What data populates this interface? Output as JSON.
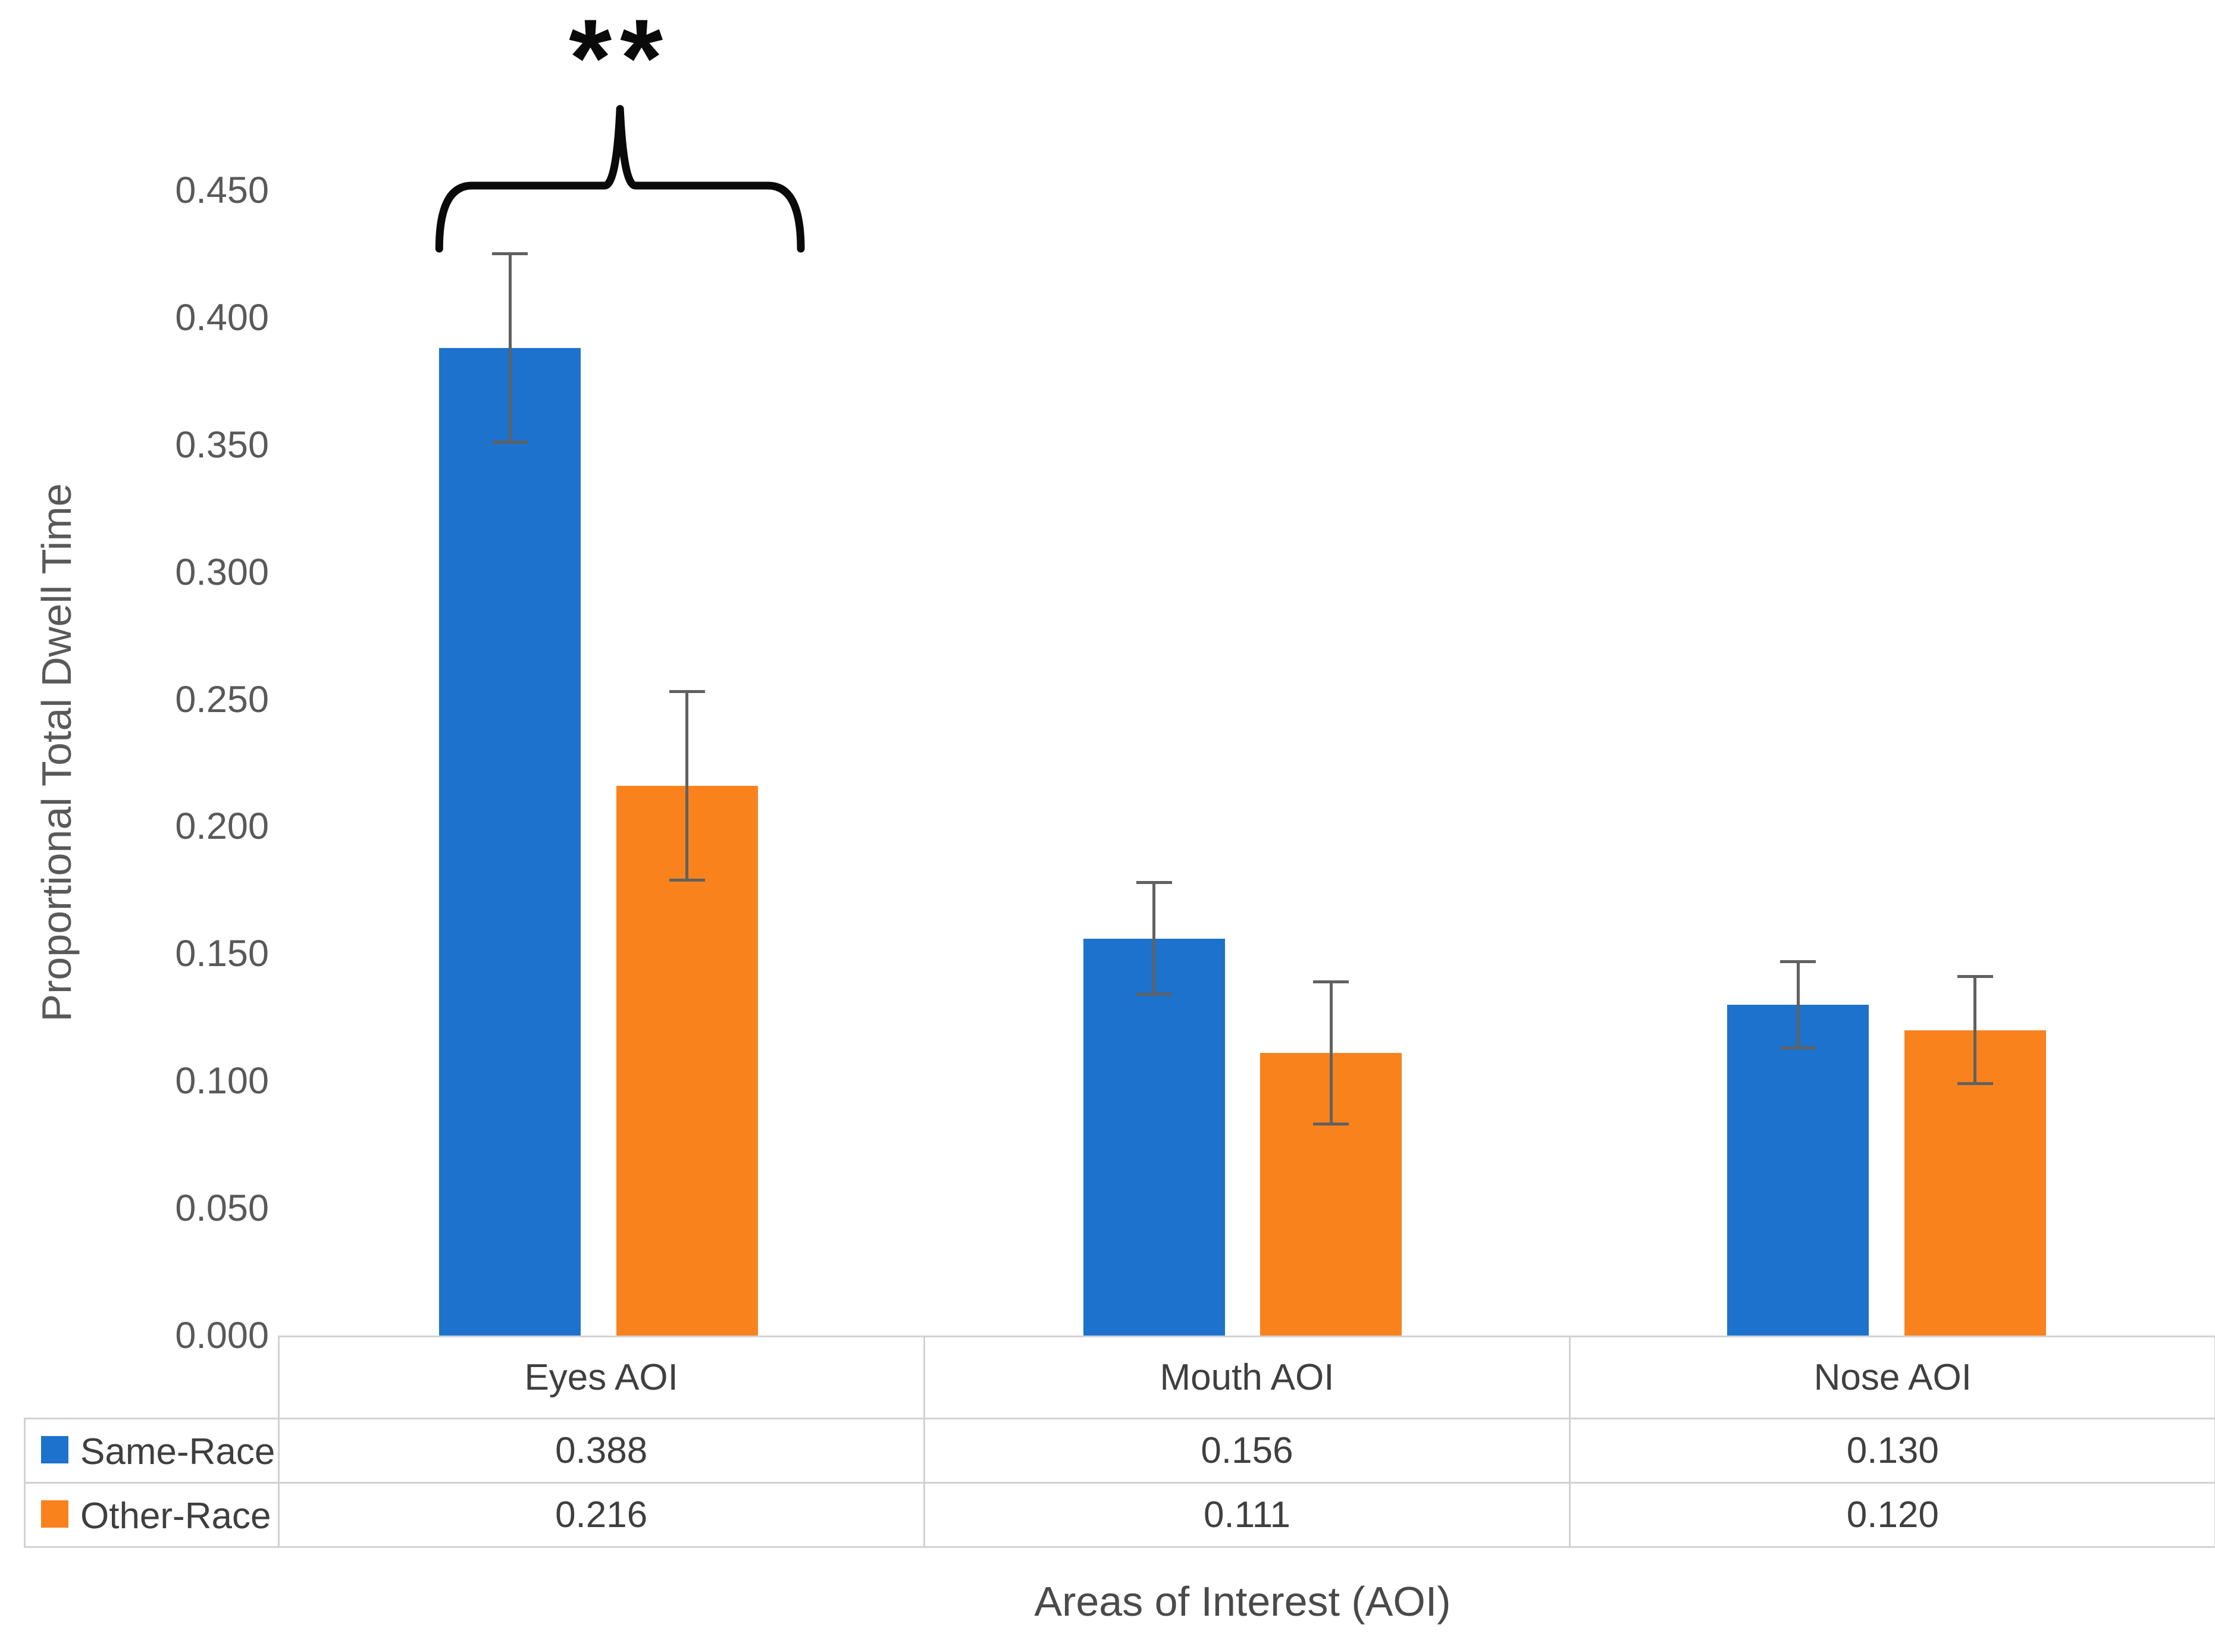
{
  "chart_data": {
    "type": "bar",
    "title": "",
    "categories": [
      "Eyes AOI",
      "Mouth AOI",
      "Nose AOI"
    ],
    "series": [
      {
        "name": "Same-Race",
        "color": "#1c72cc",
        "values": [
          0.388,
          0.156,
          0.13
        ],
        "errors": [
          0.037,
          0.022,
          0.017
        ]
      },
      {
        "name": "Other-Race",
        "color": "#f9821d",
        "values": [
          0.216,
          0.111,
          0.12
        ],
        "errors": [
          0.037,
          0.028,
          0.021
        ]
      }
    ],
    "ylabel": "Proportional Total Dwell Time",
    "xlabel": "Areas of Interest (AOI)",
    "ylim": [
      0,
      0.45
    ],
    "ytick_step": 0.05,
    "ytick_labels": [
      "0.000",
      "0.050",
      "0.100",
      "0.150",
      "0.200",
      "0.250",
      "0.300",
      "0.350",
      "0.400",
      "0.450"
    ],
    "grid": false,
    "legend_position": "table-left",
    "error_bar_color": "#616161",
    "annotation": {
      "text": "**",
      "target_category": "Eyes AOI",
      "spans_series": [
        "Same-Race",
        "Other-Race"
      ]
    }
  },
  "table": {
    "columns": [
      "Eyes AOI",
      "Mouth AOI",
      "Nose AOI"
    ],
    "row_labels": [
      "Same-Race",
      "Other-Race"
    ],
    "rows": [
      [
        "0.388",
        "0.156",
        "0.130"
      ],
      [
        "0.216",
        "0.111",
        "0.120"
      ]
    ]
  }
}
